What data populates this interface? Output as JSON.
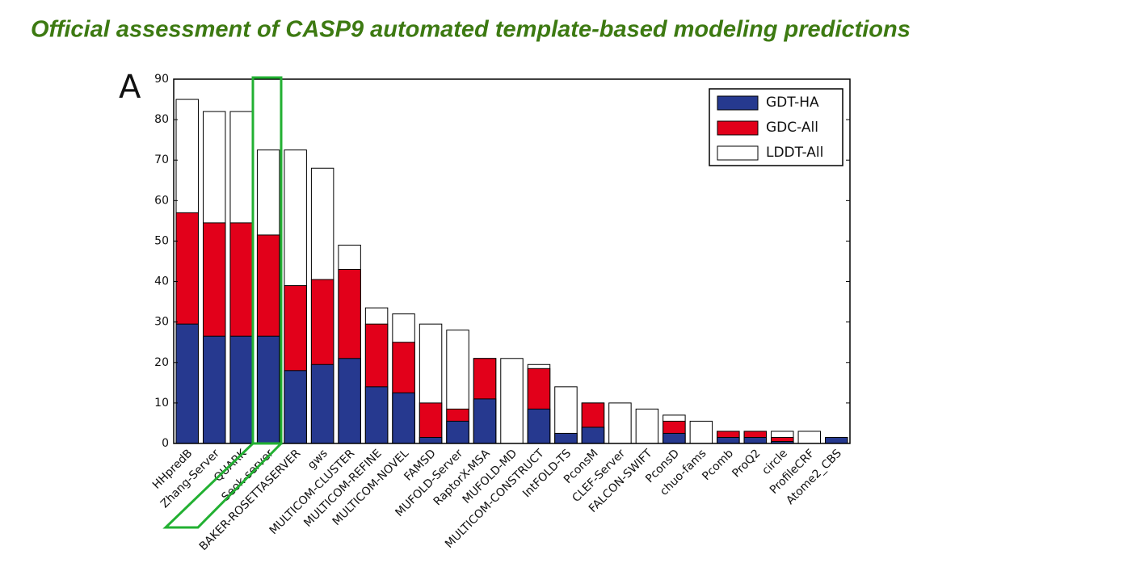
{
  "title": "Official assessment of CASP9 automated template-based modeling predictions",
  "panel_label": "A",
  "chart_data": {
    "type": "bar",
    "categories": [
      "HHpredB",
      "Zhang-Server",
      "QUARK",
      "Seok-server",
      "BAKER-ROSETTASERVER",
      "gws",
      "MULTICOM-CLUSTER",
      "MULTICOM-REFINE",
      "MULTICOM-NOVEL",
      "FAMSD",
      "MUFOLD-Server",
      "RaptorX-MSA",
      "MUFOLD-MD",
      "MULTICOM-CONSTRUCT",
      "IntFOLD-TS",
      "PconsM",
      "CLEF-Server",
      "FALCON-SWIFT",
      "PconsD",
      "chuo-fams",
      "Pcomb",
      "ProQ2",
      "circle",
      "ProfileCRF",
      "Atome2_CBS"
    ],
    "series": [
      {
        "name": "GDT-HA",
        "color": "#26398f",
        "values": [
          29.5,
          26.5,
          26.5,
          26.5,
          18,
          19.5,
          21,
          14,
          12.5,
          1.5,
          5.5,
          11,
          0,
          8.5,
          2.5,
          4,
          0,
          0,
          2.5,
          0,
          1.5,
          1.5,
          0.5,
          0,
          1.5
        ]
      },
      {
        "name": "GDC-All",
        "color": "#e2001a",
        "values": [
          57,
          54.5,
          54.5,
          51.5,
          39,
          40.5,
          43,
          29.5,
          25,
          10,
          8.5,
          21,
          0,
          18.5,
          2.5,
          10,
          0,
          0,
          5.5,
          0,
          3,
          3,
          1.5,
          0,
          1.5
        ]
      },
      {
        "name": "LDDT-All",
        "color": "#ffffff",
        "values": [
          85,
          82,
          82,
          72.5,
          72.5,
          68,
          49,
          33.5,
          32,
          29.5,
          28,
          21,
          21,
          19.5,
          14,
          10,
          10,
          8.5,
          7,
          5.5,
          3,
          3,
          3,
          3,
          1.5
        ]
      }
    ],
    "ylim": [
      0,
      90
    ],
    "yticks": [
      0,
      10,
      20,
      30,
      40,
      50,
      60,
      70,
      80,
      90
    ],
    "legend": "upper right"
  }
}
